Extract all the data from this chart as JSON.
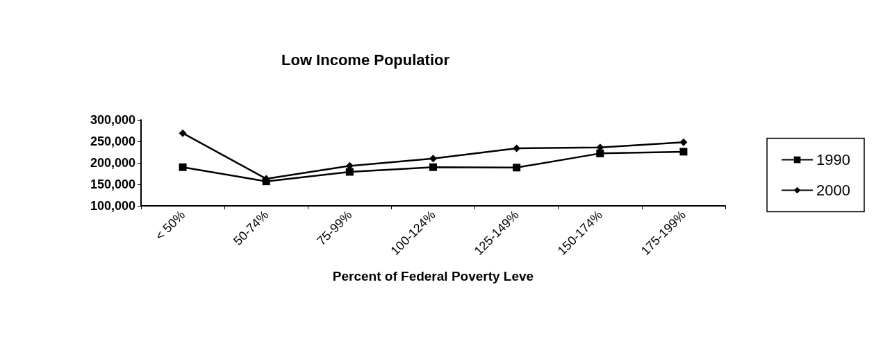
{
  "chart_data": {
    "type": "line",
    "title": "Low Income Populatior",
    "xlabel": "Percent of Federal Poverty Leve",
    "categories": [
      "< 50%",
      "50-74%",
      "75-99%",
      "100-124%",
      "125-149%",
      "150-174%",
      "175-199%"
    ],
    "series": [
      {
        "name": "1990",
        "color": "#000000",
        "marker": "square",
        "values": [
          190000,
          157000,
          179000,
          190000,
          189000,
          222000,
          226000
        ]
      },
      {
        "name": "2000",
        "color": "#000000",
        "marker": "diamond",
        "values": [
          269000,
          163000,
          193000,
          210000,
          234000,
          236000,
          248000
        ]
      }
    ],
    "ylim": [
      100000,
      300000
    ],
    "yticks": [
      {
        "value": 100000,
        "label": "100,000"
      },
      {
        "value": 150000,
        "label": "150,000"
      },
      {
        "value": 200000,
        "label": "200,000"
      },
      {
        "value": 250000,
        "label": "250,000"
      },
      {
        "value": 300000,
        "label": "300,000"
      }
    ],
    "grid": false,
    "legend": "right"
  }
}
